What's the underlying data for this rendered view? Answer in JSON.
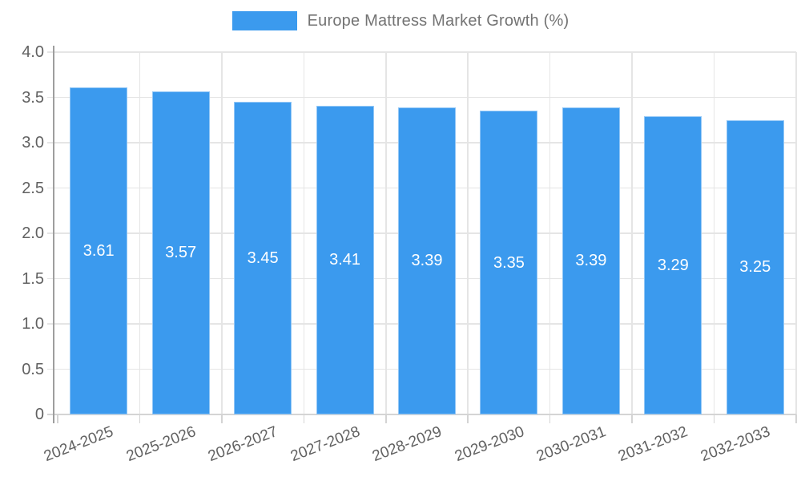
{
  "chart_data": {
    "type": "bar",
    "title": "Europe Mattress Market Growth (%)",
    "categories": [
      "2024-2025",
      "2025-2026",
      "2026-2027",
      "2027-2028",
      "2028-2029",
      "2029-2030",
      "2030-2031",
      "2031-2032",
      "2032-2033"
    ],
    "values": [
      3.61,
      3.57,
      3.45,
      3.41,
      3.39,
      3.35,
      3.39,
      3.29,
      3.25
    ],
    "value_labels": [
      "3.61",
      "3.57",
      "3.45",
      "3.41",
      "3.39",
      "3.35",
      "3.39",
      "3.29",
      "3.25"
    ],
    "xlabel": "",
    "ylabel": "",
    "ylim": [
      0,
      4
    ],
    "yticks": [
      0,
      0.5,
      1,
      1.5,
      2,
      2.5,
      3,
      3.5,
      4
    ],
    "ytick_labels": [
      "0",
      "0.5",
      "1.0",
      "1.5",
      "2.0",
      "2.5",
      "3.0",
      "3.5",
      "4.0"
    ],
    "grid": true,
    "legend_position": "top-center",
    "colors": {
      "bar": "#3B9AEE",
      "value_label": "#FFFFFF",
      "grid_line": "#E5E5E5",
      "y_axis_line": "#9E9E9E",
      "x_axis_line": "#D4D4D4",
      "tick": "#D4D4D4",
      "axis_text": "#616161",
      "legend_text": "#737373",
      "background": "#FFFFFF"
    }
  }
}
